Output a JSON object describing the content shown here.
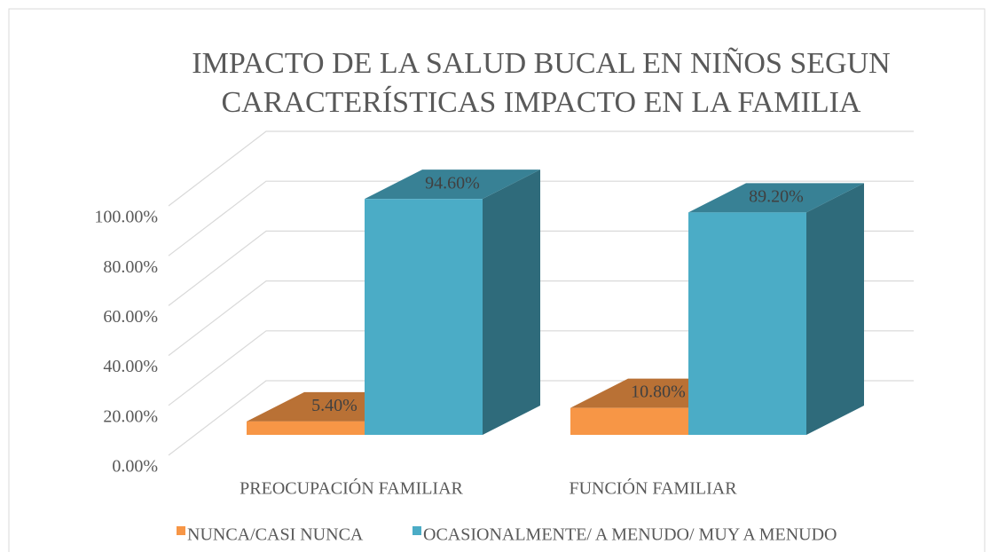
{
  "chart_data": {
    "type": "bar3d",
    "title": "IMPACTO DE LA SALUD BUCAL EN NIÑOS SEGUN CARACTERÍSTICAS  IMPACTO EN LA FAMILIA",
    "categories": [
      "PREOCUPACIÓN FAMILIAR",
      "FUNCIÓN FAMILIAR"
    ],
    "series": [
      {
        "name": "NUNCA/CASI NUNCA",
        "color": "#f79646",
        "values": [
          5.4,
          10.8
        ],
        "value_labels": [
          "5.40%",
          "10.80%"
        ]
      },
      {
        "name": "OCASIONALMENTE/ A MENUDO/ MUY A MENUDO",
        "color": "#4bacc6",
        "values": [
          94.6,
          89.2
        ],
        "value_labels": [
          "94.60%",
          "89.20%"
        ]
      }
    ],
    "ylim": [
      0,
      100
    ],
    "yticks": [
      {
        "value": 0,
        "label": "0.00%"
      },
      {
        "value": 20,
        "label": "20.00%"
      },
      {
        "value": 40,
        "label": "40.00%"
      },
      {
        "value": 60,
        "label": "60.00%"
      },
      {
        "value": 80,
        "label": "80.00%"
      },
      {
        "value": 100,
        "label": "100.00%"
      }
    ],
    "grid": true,
    "legend": "bottom"
  }
}
